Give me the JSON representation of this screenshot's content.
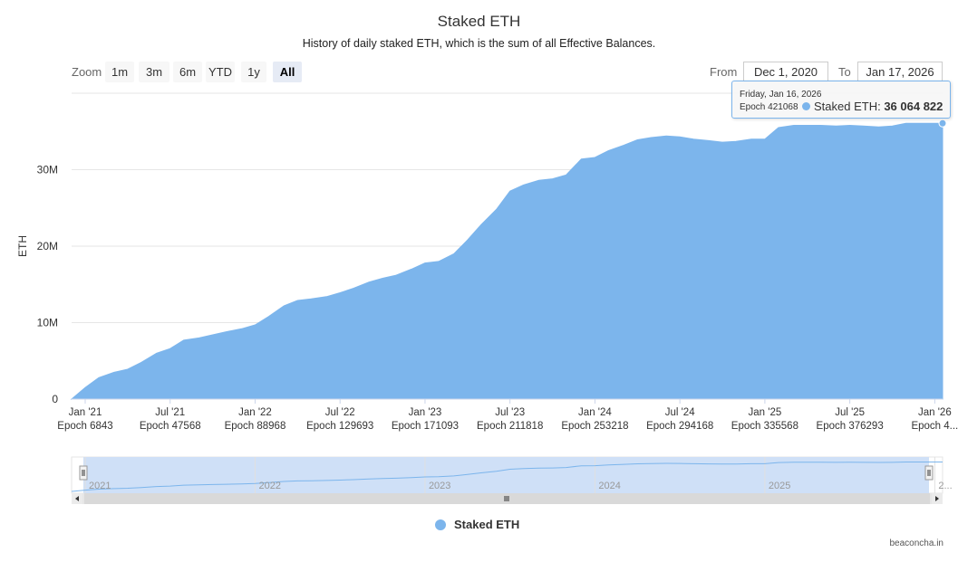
{
  "chart_data": {
    "type": "area",
    "title": "Staked ETH",
    "subtitle": "History of daily staked ETH, which is the sum of all Effective Balances.",
    "ylabel": "ETH",
    "ylim": [
      0,
      40000000
    ],
    "yticks": [
      {
        "value": 0,
        "label": "0"
      },
      {
        "value": 10000000,
        "label": "10M"
      },
      {
        "value": 20000000,
        "label": "20M"
      },
      {
        "value": 30000000,
        "label": "30M"
      }
    ],
    "xlim": [
      2020.92,
      2026.046
    ],
    "xticks": [
      {
        "value": 2021.0,
        "line1": "Jan '21",
        "line2": "Epoch 6843"
      },
      {
        "value": 2021.5,
        "line1": "Jul '21",
        "line2": "Epoch 47568"
      },
      {
        "value": 2022.0,
        "line1": "Jan '22",
        "line2": "Epoch 88968"
      },
      {
        "value": 2022.5,
        "line1": "Jul '22",
        "line2": "Epoch 129693"
      },
      {
        "value": 2023.0,
        "line1": "Jan '23",
        "line2": "Epoch 171093"
      },
      {
        "value": 2023.5,
        "line1": "Jul '23",
        "line2": "Epoch 211818"
      },
      {
        "value": 2024.0,
        "line1": "Jan '24",
        "line2": "Epoch 253218"
      },
      {
        "value": 2024.5,
        "line1": "Jul '24",
        "line2": "Epoch 294168"
      },
      {
        "value": 2025.0,
        "line1": "Jan '25",
        "line2": "Epoch 335568"
      },
      {
        "value": 2025.5,
        "line1": "Jul '25",
        "line2": "Epoch 376293"
      },
      {
        "value": 2026.0,
        "line1": "Jan '26",
        "line2": "Epoch 4..."
      }
    ],
    "series": [
      {
        "name": "Staked ETH",
        "color": "#7cb5ec",
        "x": [
          2020.92,
          2021.0,
          2021.08,
          2021.17,
          2021.25,
          2021.33,
          2021.42,
          2021.5,
          2021.58,
          2021.67,
          2021.75,
          2021.83,
          2021.92,
          2022.0,
          2022.08,
          2022.17,
          2022.25,
          2022.33,
          2022.42,
          2022.5,
          2022.58,
          2022.67,
          2022.75,
          2022.83,
          2022.92,
          2023.0,
          2023.08,
          2023.17,
          2023.25,
          2023.33,
          2023.42,
          2023.5,
          2023.58,
          2023.67,
          2023.75,
          2023.83,
          2023.92,
          2024.0,
          2024.08,
          2024.17,
          2024.25,
          2024.33,
          2024.42,
          2024.5,
          2024.58,
          2024.67,
          2024.75,
          2024.83,
          2024.92,
          2025.0,
          2025.08,
          2025.17,
          2025.25,
          2025.33,
          2025.42,
          2025.5,
          2025.58,
          2025.67,
          2025.75,
          2025.83,
          2025.92,
          2026.0,
          2026.04,
          2026.046
        ],
        "values": [
          0,
          1500000,
          2800000,
          3500000,
          3900000,
          4800000,
          6000000,
          6600000,
          7700000,
          8000000,
          8400000,
          8800000,
          9200000,
          9700000,
          10800000,
          12200000,
          12900000,
          13100000,
          13400000,
          13900000,
          14500000,
          15300000,
          15800000,
          16200000,
          17000000,
          17800000,
          18000000,
          19000000,
          20800000,
          22800000,
          24800000,
          27200000,
          28000000,
          28600000,
          28800000,
          29300000,
          31400000,
          31600000,
          32500000,
          33200000,
          33900000,
          34200000,
          34400000,
          34300000,
          34000000,
          33800000,
          33600000,
          33700000,
          34000000,
          34000000,
          35500000,
          35800000,
          35800000,
          35800000,
          35700000,
          35800000,
          35700000,
          35600000,
          35700000,
          36064822,
          36064822,
          36064822,
          36064822,
          36064822
        ]
      }
    ],
    "navigator_labels": [
      "2021",
      "2022",
      "2023",
      "2024",
      "2025",
      "2..."
    ]
  },
  "zoom": {
    "label": "Zoom",
    "buttons": [
      "1m",
      "3m",
      "6m",
      "YTD",
      "1y",
      "All"
    ],
    "active": "All"
  },
  "range": {
    "from_label": "From",
    "from_value": "Dec 1, 2020",
    "to_label": "To",
    "to_value": "Jan 17, 2026"
  },
  "tooltip": {
    "date": "Friday, Jan 16, 2026",
    "epoch": "Epoch 421068",
    "series_label": "Staked ETH:",
    "value": "36 064 822"
  },
  "legend": {
    "label": "Staked ETH"
  },
  "credits": "beaconcha.in"
}
